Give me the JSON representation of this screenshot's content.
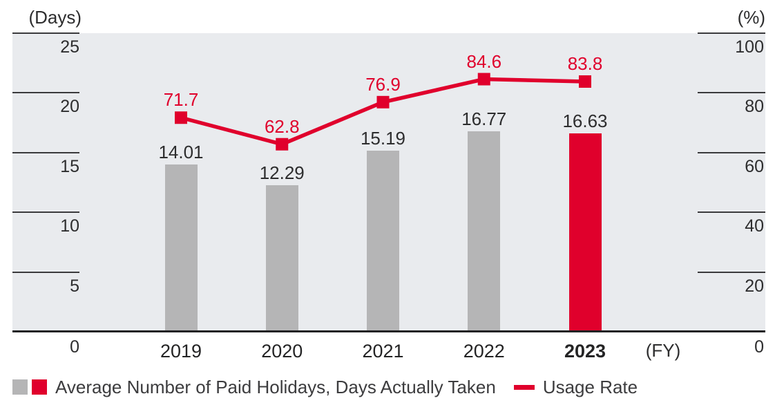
{
  "chart_data": {
    "type": "bar+line",
    "categories": [
      "2019",
      "2020",
      "2021",
      "2022",
      "2023"
    ],
    "series": [
      {
        "name": "Average Number of Paid Holidays, Days Actually Taken",
        "type": "bar",
        "axis": "left",
        "values": [
          14.01,
          12.29,
          15.19,
          16.77,
          16.63
        ],
        "bar_color_keys": [
          "bar_gray",
          "bar_gray",
          "bar_gray",
          "bar_gray",
          "red"
        ]
      },
      {
        "name": "Usage Rate",
        "type": "line",
        "axis": "right",
        "values": [
          71.7,
          62.8,
          76.9,
          84.6,
          83.8
        ]
      }
    ],
    "value_labels": {
      "bar": [
        "14.01",
        "12.29",
        "15.19",
        "16.77",
        "16.63"
      ],
      "line": [
        "71.7",
        "62.8",
        "76.9",
        "84.6",
        "83.8"
      ]
    },
    "left_axis": {
      "title": "(Days)",
      "min": 0,
      "max": 25,
      "ticks": [
        25,
        20,
        15,
        10,
        5,
        0
      ]
    },
    "right_axis": {
      "title": "(%)",
      "min": 0,
      "max": 100,
      "ticks": [
        100,
        80,
        60,
        40,
        20,
        0
      ]
    },
    "x_axis": {
      "title": "(FY)",
      "bold_category": "2023"
    },
    "layout": {
      "grid": false,
      "legend_position": "bottom-left",
      "plot_background": "gray-band"
    }
  },
  "legend": {
    "bar_label": "Average Number of Paid Holidays, Days Actually Taken",
    "line_label": "Usage Rate"
  },
  "colors": {
    "red": "#e0002c",
    "bar_gray": "#b5b5b6",
    "band_bg": "#e9ebee",
    "text_dark": "#2d2d2e",
    "axis_line": "#3a3a3c"
  }
}
